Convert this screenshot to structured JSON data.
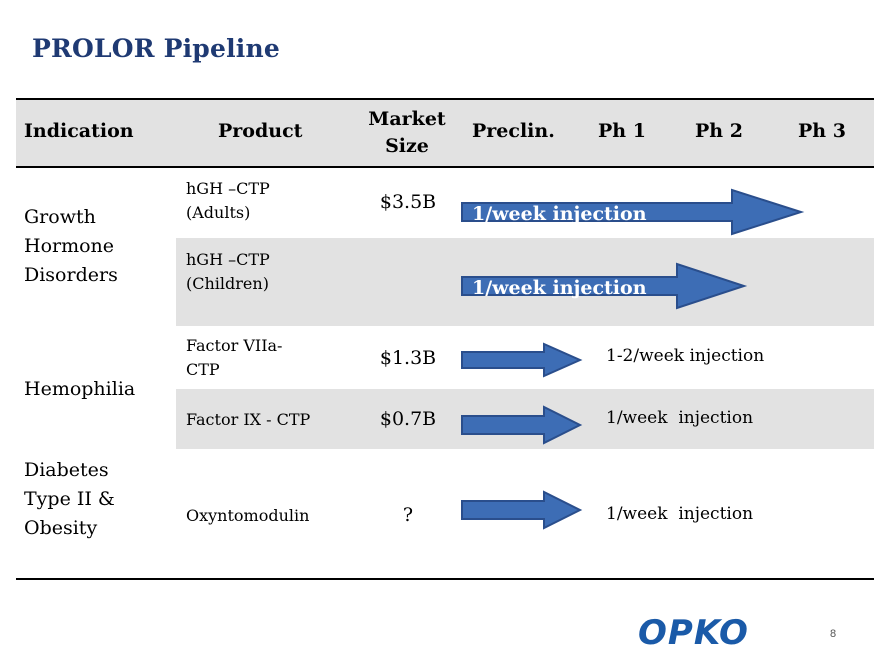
{
  "title": "PROLOR Pipeline",
  "table": {
    "headers": {
      "indication": "Indication",
      "product": "Product",
      "market_size": "Market\nSize",
      "preclin": "Preclin.",
      "ph1": "Ph 1",
      "ph2": "Ph 2",
      "ph3": "Ph 3"
    },
    "indications": [
      "Growth\nHormone\nDisorders",
      "Hemophilia",
      "Diabetes\nType II &\nObesity"
    ],
    "rows": [
      {
        "product": "hGH –CTP\n(Adults)",
        "market_size": "$3.5B",
        "arrow_label": "1/week injection",
        "note": "",
        "arrow_color": "#3D6DB5"
      },
      {
        "product": "hGH –CTP\n(Children)",
        "market_size": "",
        "arrow_label": "1/week injection",
        "note": "",
        "arrow_color": "#3D6DB5"
      },
      {
        "product": "Factor VIIa-\nCTP",
        "market_size": "$1.3B",
        "arrow_label": "",
        "note": "1-2/week injection",
        "arrow_color": "#3D6DB5"
      },
      {
        "product": "Factor IX - CTP",
        "market_size": "$0.7B",
        "arrow_label": "",
        "note": "1/week  injection",
        "arrow_color": "#3D6DB5"
      },
      {
        "product": "Oxyntomodulin",
        "market_size": "?",
        "arrow_label": "",
        "note": "1/week  injection",
        "arrow_color": "#3D6DB5"
      }
    ]
  },
  "logo_text": "OPKO",
  "page_number": "8",
  "colors": {
    "title": "#1F3A73",
    "arrow_fill": "#3D6DB5",
    "arrow_stroke": "#2A4E8C",
    "band": "#e2e2e2",
    "logo": "#1a5aa8"
  }
}
